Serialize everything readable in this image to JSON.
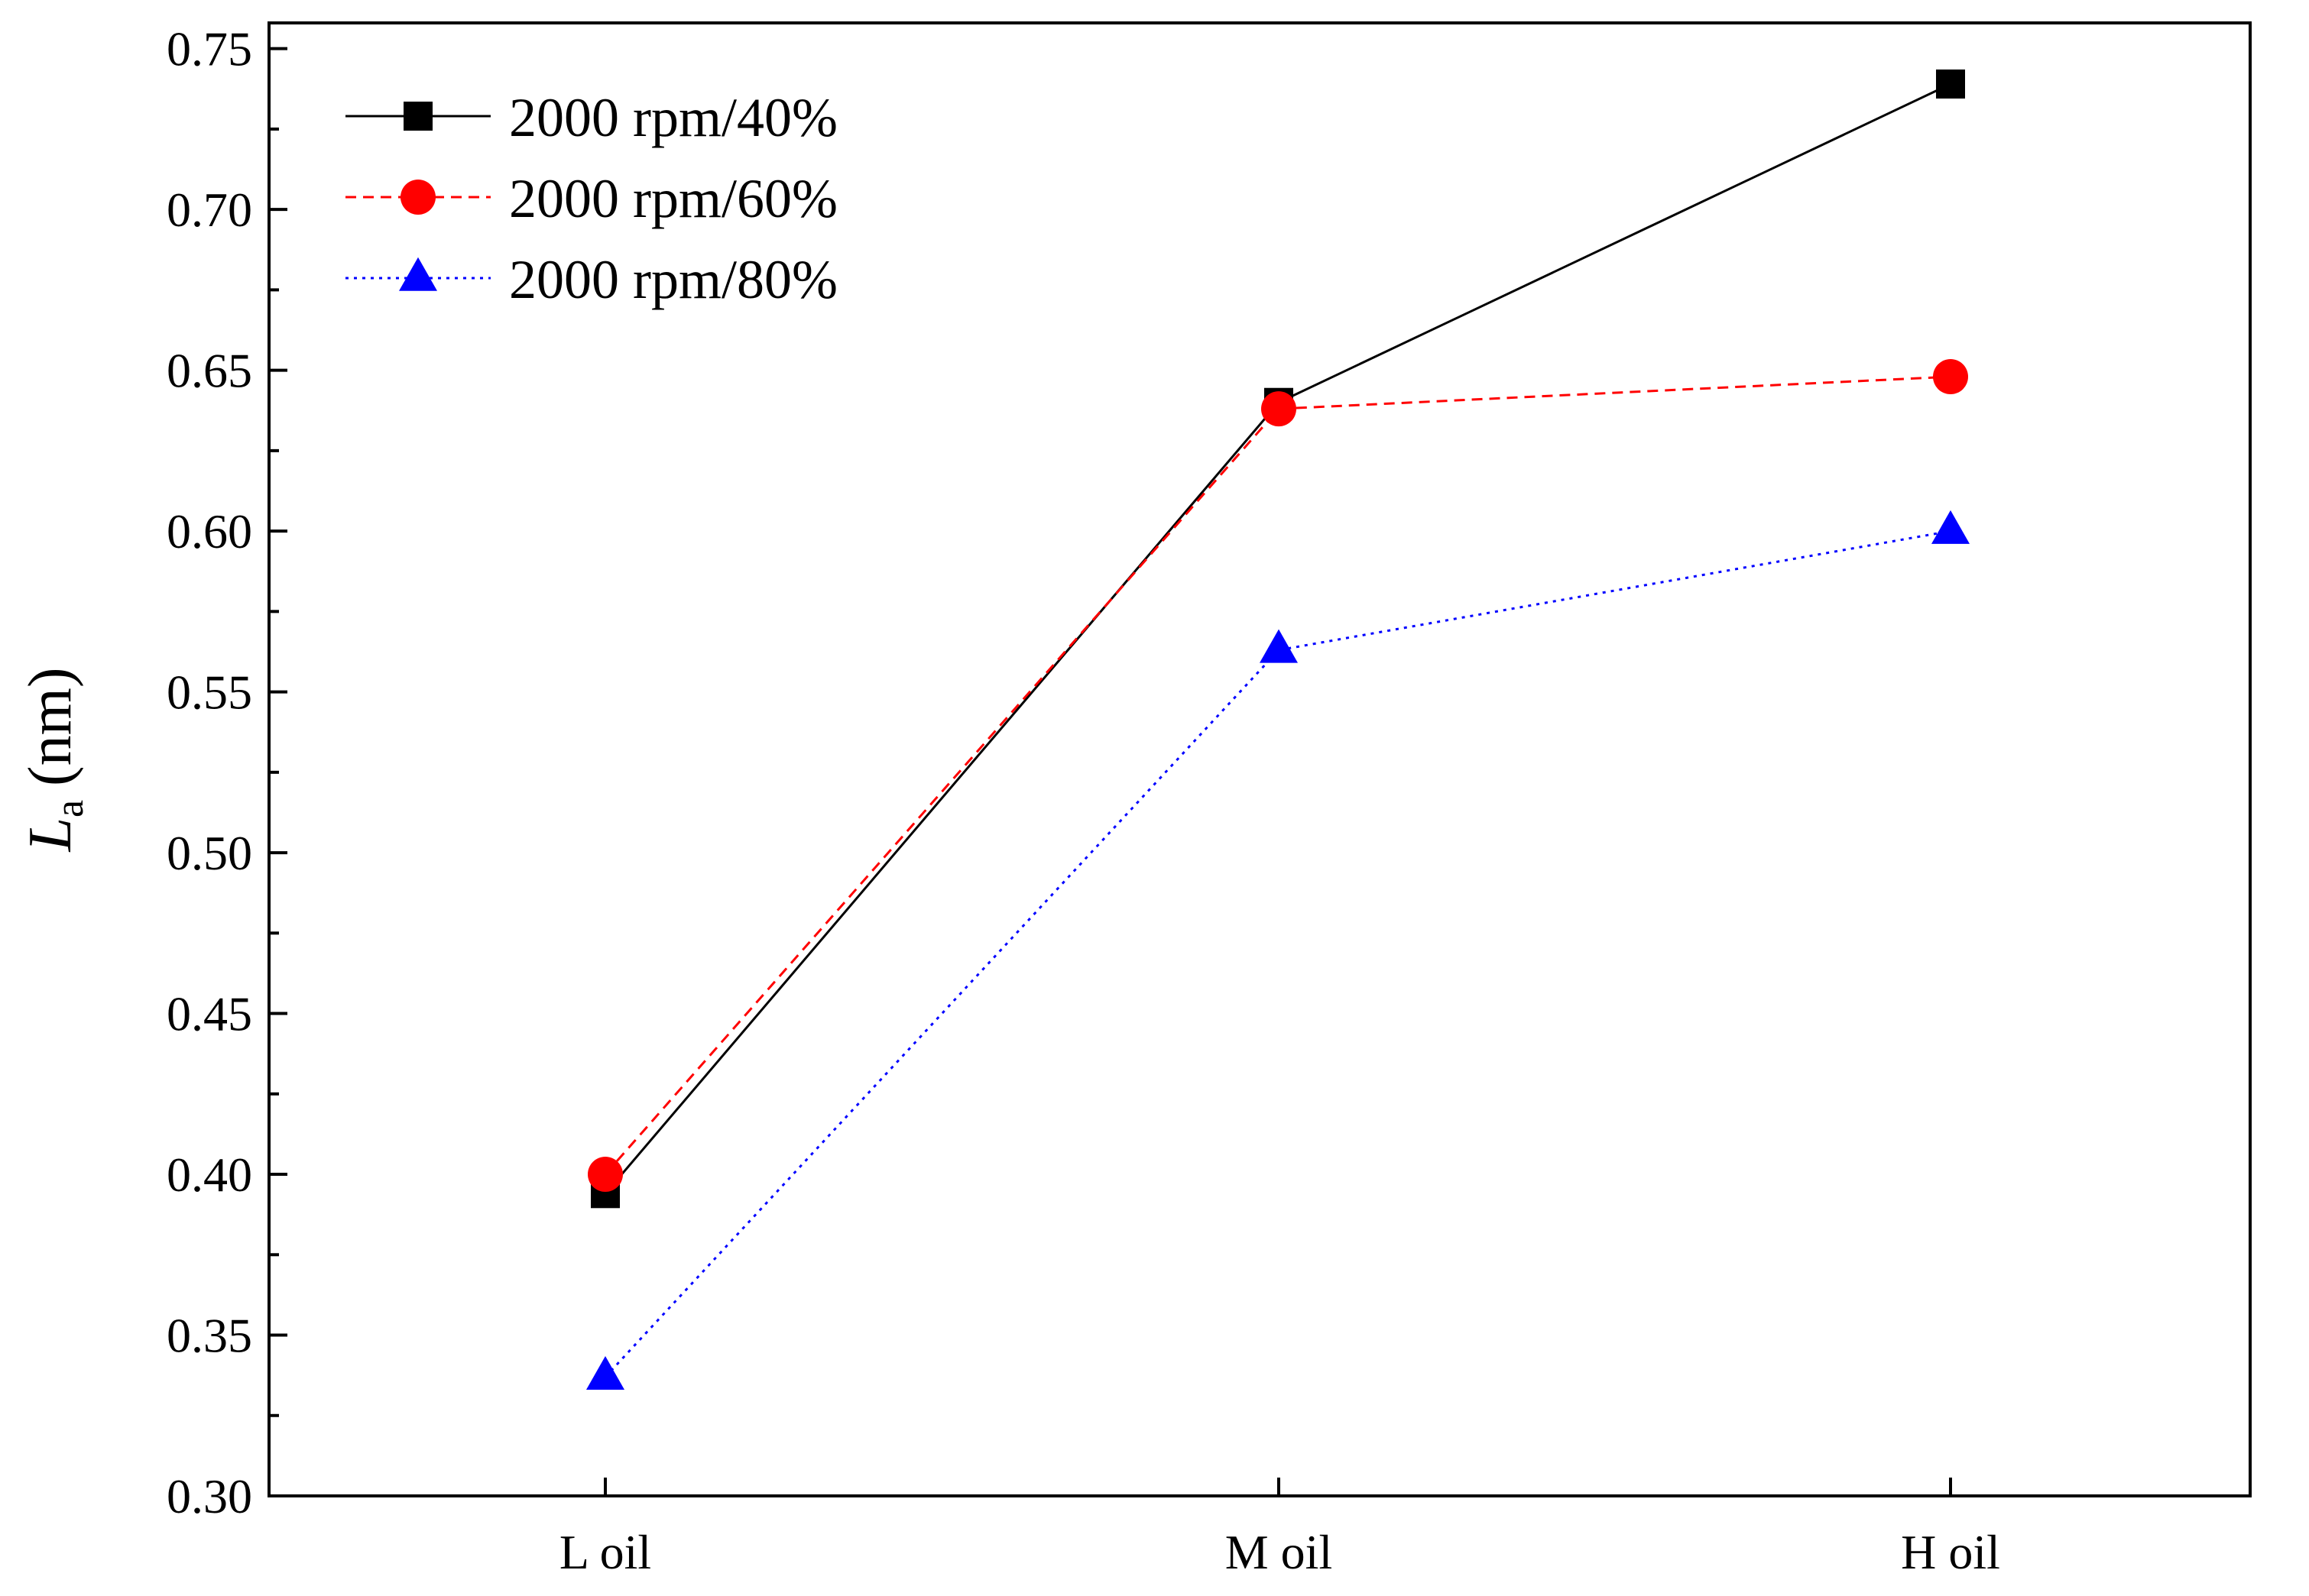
{
  "chart_data": {
    "type": "line",
    "title": "",
    "xlabel": "",
    "ylabel": {
      "symbol": "L",
      "subscript": "a",
      "unit": "(nm)"
    },
    "categories": [
      "L oil",
      "M oil",
      "H oil"
    ],
    "ylim": [
      0.3,
      0.76
    ],
    "yticks": [
      "0.30",
      "0.35",
      "0.40",
      "0.45",
      "0.50",
      "0.55",
      "0.60",
      "0.65",
      "0.70",
      "0.75"
    ],
    "grid": false,
    "legend_position": "top-left",
    "series": [
      {
        "name": "2000 rpm/40%",
        "values": [
          0.394,
          0.64,
          0.739
        ],
        "color": "#000000",
        "marker": "square",
        "line_style": "solid"
      },
      {
        "name": "2000 rpm/60%",
        "values": [
          0.4,
          0.638,
          0.648
        ],
        "color": "#ff0000",
        "marker": "circle",
        "line_style": "dashed"
      },
      {
        "name": "2000 rpm/80%",
        "values": [
          0.337,
          0.563,
          0.6
        ],
        "color": "#0000ff",
        "marker": "triangle",
        "line_style": "dotted"
      }
    ]
  }
}
